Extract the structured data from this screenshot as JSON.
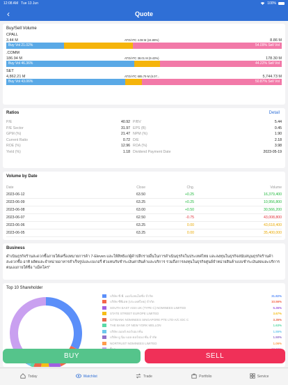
{
  "status": {
    "time": "12:08 AM",
    "date": "Tue 13 Jun",
    "battery": "100%"
  },
  "header": {
    "title": "Quote"
  },
  "bsv": {
    "title": "Buy/Sell Volume",
    "items": [
      {
        "symbol": "CPALL",
        "buy_vol": "3.44 M",
        "ato": "ATO/ATC 4.08 M (24.89%)",
        "sell_vol": "8.86 M",
        "buy_label": "Buy Vol 21.02%",
        "sell_label": "54.09% Sell Vol",
        "buy_pct": 21.02,
        "ato_pct": 24.89,
        "sell_pct": 54.09
      },
      {
        "symbol": ".COMM",
        "buy_vol": "186.94 M",
        "ato": "ATO/ATC 38.01 M (9.43%)",
        "sell_vol": "178.30 M",
        "buy_label": "Buy Vol 46.36%",
        "sell_label": "44.22% Sell Vol",
        "buy_pct": 46.36,
        "ato_pct": 9.43,
        "sell_pct": 44.22
      },
      {
        "symbol": "SET",
        "buy_vol": "4,862.21 M",
        "ato": "ATO/ATC 685.79 M (6.07...",
        "sell_vol": "5,744.73 M",
        "buy_label": "Buy Vol 43.06%",
        "sell_label": "50.87% Sell Vol",
        "buy_pct": 43.06,
        "ato_pct": 6.07,
        "sell_pct": 50.87
      }
    ]
  },
  "ratios": {
    "title": "Ratios",
    "detail_label": "Detail",
    "rows": [
      {
        "l1": "P/E",
        "v1": "40.92",
        "l2": "P/BV",
        "v2": "5.44"
      },
      {
        "l1": "P/E Sector",
        "v1": "31.97",
        "l2": "EPS (B)",
        "v2": "0.45"
      },
      {
        "l1": "GPM (%)",
        "v1": "21.47",
        "l2": "NPM (%)",
        "v2": "1.90"
      },
      {
        "l1": "Current Ratio",
        "v1": "0.72",
        "l2": "D/E",
        "v2": "2.18"
      },
      {
        "l1": "ROE (%)",
        "v1": "12.96",
        "l2": "ROA (%)",
        "v2": "3.98"
      },
      {
        "l1": "Yield (%)",
        "v1": "1.18",
        "l2": "Dividend Payment Date",
        "v2": "2023-05-19"
      }
    ]
  },
  "volume": {
    "title": "Volume by Date",
    "headers": {
      "date": "Date",
      "close": "Close",
      "chg": "Chg.",
      "volume": "Volume"
    },
    "rows": [
      {
        "date": "2023-06-12",
        "close": "63.50",
        "chg": "+0.25",
        "volume": "16,379,400",
        "dir": "pos"
      },
      {
        "date": "2023-06-09",
        "close": "63.25",
        "chg": "+0.25",
        "volume": "10,956,800",
        "dir": "pos"
      },
      {
        "date": "2023-06-08",
        "close": "63.00",
        "chg": "+0.50",
        "volume": "30,566,200",
        "dir": "pos"
      },
      {
        "date": "2023-06-07",
        "close": "62.50",
        "chg": "-0.75",
        "volume": "43,008,800",
        "dir": "neg"
      },
      {
        "date": "2023-06-06",
        "close": "63.25",
        "chg": "0.00",
        "volume": "43,618,400",
        "dir": "zero"
      },
      {
        "date": "2023-06-05",
        "close": "63.25",
        "chg": "0.00",
        "volume": "35,400,000",
        "dir": "zero"
      }
    ]
  },
  "business": {
    "title": "Business",
    "text": "ดำเนินธุรกิจร้านสะดวกซื้อภายใต้เครื่องหมายการค้า 7-Eleven และให้สิทธิแก่ผู้ค้าปลีกรายอื่นในการดำเนินธุรกิจในประเทศไทย และลงทุนในธุรกิจสนับสนุนธุรกิจร้านค้าสะดวกซื้อ อาทิ ผลิตและจำหน่ายอาหารสำเร็จรูปและเบเกอรี่ ตัวแทนรับชำระเงินค่าสินค้าและบริการ รวมถึงการลงทุนในธุรกิจศูนย์จำหน่ายสินค้าแบบชำระเงินสดและบริการตนเองภายใต้ชื่อ \"แม็คโคร\""
  },
  "shareholders": {
    "title": "Top 10 Shareholder",
    "items": [
      {
        "name": "บริษัท ซี.พี. เมอร์แชนไดซิ่ง จำกัด",
        "pct": "31.82%",
        "value": 31.82,
        "color": "#5b8ff9"
      },
      {
        "name": "บริษัท ซีพีเอฟ (ประเทศไทย) จำกัด",
        "pct": "10.56%",
        "value": 10.56,
        "color": "#f4664a"
      },
      {
        "name": "SOUTH EAST ASIA UK (TYPE C) NOMINEES LIMITED",
        "pct": "5.36%",
        "value": 5.36,
        "color": "#a060e0"
      },
      {
        "name": "STATE STREET EUROPE LIMITED",
        "pct": "3.67%",
        "value": 3.67,
        "color": "#f6bd16"
      },
      {
        "name": "CITIBANK NOMINEES SINGAPORE PTE LTD-A/C IDC C",
        "pct": "3.35%",
        "value": 3.35,
        "color": "#e8684a"
      },
      {
        "name": "THE BANK OF NEW YORK MELLON",
        "pct": "1.63%",
        "value": 1.63,
        "color": "#5ad8a6"
      },
      {
        "name": "บริษัท ออลล์ คอร์ปอเรชั่น",
        "pct": "1.55%",
        "value": 1.55,
        "color": "#6dc8ec"
      },
      {
        "name": "บริษัท ยู นิม บอล คอร์ปอเรชั่น จำกัด",
        "pct": "1.50%",
        "value": 1.5,
        "color": "#9270ca"
      },
      {
        "name": "NORTRUST NOMINEES LIMITED",
        "pct": "1.06%",
        "value": 1.06,
        "color": "#ff9d4d"
      },
      {
        "name": "อื่นๆ",
        "pct": "37.83%",
        "value": 37.83,
        "color": "#c9a0f0"
      }
    ]
  },
  "actions": {
    "buy": "BUY",
    "sell": "SELL"
  },
  "tabs": [
    {
      "label": "Today",
      "icon": "home-icon"
    },
    {
      "label": "Watchlist",
      "icon": "eye-icon",
      "active": true
    },
    {
      "label": "Trade",
      "icon": "trade-icon"
    },
    {
      "label": "Portfolio",
      "icon": "portfolio-icon"
    },
    {
      "label": "Service",
      "icon": "service-icon"
    }
  ]
}
